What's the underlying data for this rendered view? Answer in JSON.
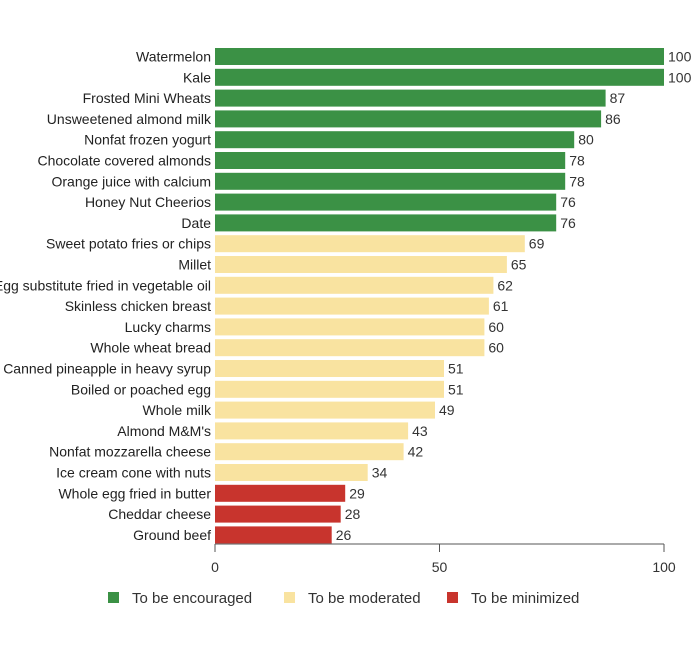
{
  "chart_data": {
    "type": "bar",
    "orientation": "horizontal",
    "categories": [
      "Watermelon",
      "Kale",
      "Frosted Mini Wheats",
      "Unsweetened almond milk",
      "Nonfat frozen yogurt",
      "Chocolate covered almonds",
      "Orange juice with calcium",
      "Honey Nut Cheerios",
      "Date",
      "Sweet potato fries or chips",
      "Millet",
      "Egg substitute fried in vegetable oil",
      "Skinless chicken breast",
      "Lucky charms",
      "Whole wheat bread",
      "Canned pineapple in heavy syrup",
      "Boiled or poached egg",
      "Whole milk",
      "Almond M&M's",
      "Nonfat mozzarella cheese",
      "Ice cream cone with nuts",
      "Whole egg fried in butter",
      "Cheddar cheese",
      "Ground beef"
    ],
    "values": [
      100,
      100,
      87,
      86,
      80,
      78,
      78,
      76,
      76,
      69,
      65,
      62,
      61,
      60,
      60,
      51,
      51,
      49,
      43,
      42,
      34,
      29,
      28,
      26
    ],
    "value_labels": [
      "100",
      "100",
      "87",
      "86",
      "80",
      "78",
      "78",
      "76",
      "76",
      "69",
      "65",
      "62",
      "61",
      "60",
      "60",
      "51",
      "51",
      "49",
      "43",
      "42",
      "34",
      "29",
      "28",
      "26"
    ],
    "groups": [
      "encouraged",
      "encouraged",
      "encouraged",
      "encouraged",
      "encouraged",
      "encouraged",
      "encouraged",
      "encouraged",
      "encouraged",
      "moderated",
      "moderated",
      "moderated",
      "moderated",
      "moderated",
      "moderated",
      "moderated",
      "moderated",
      "moderated",
      "moderated",
      "moderated",
      "moderated",
      "minimized",
      "minimized",
      "minimized"
    ],
    "legend": [
      {
        "key": "encouraged",
        "label": "To be encouraged",
        "color": "#3b9145"
      },
      {
        "key": "moderated",
        "label": "To be moderated",
        "color": "#f9e3a0"
      },
      {
        "key": "minimized",
        "label": "To be minimized",
        "color": "#c8342d"
      }
    ],
    "xlim": [
      0,
      100
    ],
    "xticks": [
      0,
      50,
      100
    ],
    "xtick_labels": [
      "0",
      "50",
      "100"
    ],
    "grid": false,
    "legend_position": "bottom"
  }
}
